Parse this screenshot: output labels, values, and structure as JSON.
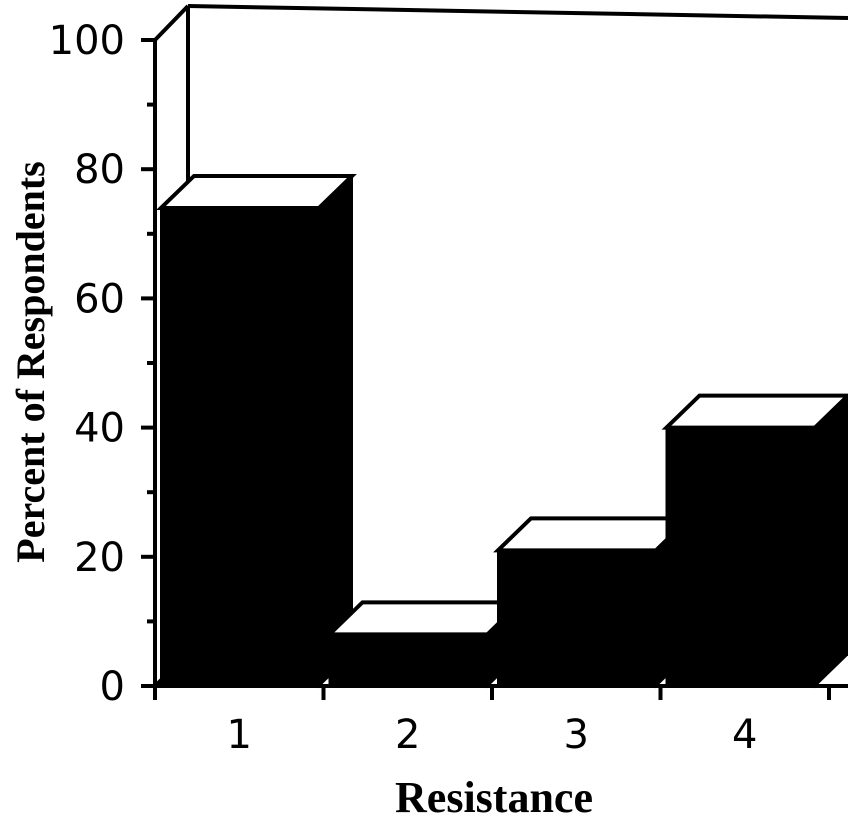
{
  "chart_data": {
    "type": "bar",
    "style": "3d",
    "categories": [
      "1",
      "2",
      "3",
      "4"
    ],
    "values": [
      74,
      8,
      21,
      40
    ],
    "xlabel": "Resistance",
    "ylabel": "Percent of Respondents",
    "ylim": [
      0,
      100
    ],
    "yticks": [
      "0",
      "20",
      "40",
      "60",
      "80",
      "100"
    ],
    "grid": false,
    "colors": {
      "bar": "#000000",
      "bar_top": "#ffffff",
      "axis": "#000000"
    }
  }
}
